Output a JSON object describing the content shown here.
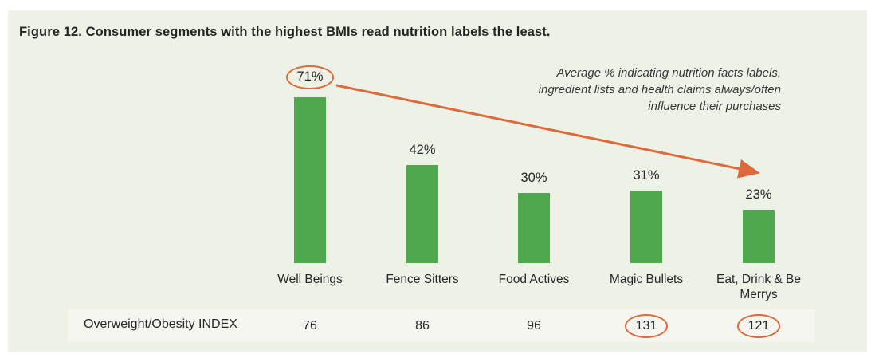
{
  "title": "Figure 12. Consumer segments with the highest BMIs read nutrition labels the least.",
  "annotation": {
    "lines": [
      "Average % indicating nutrition facts labels,",
      "ingredient lists and health claims always/often",
      "influence their purchases"
    ]
  },
  "index_row": {
    "label": "Overweight/Obesity INDEX"
  },
  "colors": {
    "bar": "#4fa84d",
    "accent_orange": "#dd6a3c",
    "panel_bg": "#edf1e6",
    "strip_bg": "#f4f6ef",
    "text": "#242628"
  },
  "chart_data": {
    "type": "bar",
    "title": "Figure 12. Consumer segments with the highest BMIs read nutrition labels the least.",
    "categories": [
      "Well Beings",
      "Fence Sitters",
      "Food Actives",
      "Magic Bullets",
      "Eat, Drink & Be Merrys"
    ],
    "values": [
      71,
      42,
      30,
      31,
      23
    ],
    "value_labels": [
      "71%",
      "42%",
      "30%",
      "31%",
      "23%"
    ],
    "unit": "%",
    "ylim": [
      0,
      80
    ],
    "grid": false,
    "legend": false,
    "circled_value_index": 0,
    "index_row_label": "Overweight/Obesity INDEX",
    "index_values": [
      76,
      86,
      96,
      131,
      121
    ],
    "circled_index_values": [
      131,
      121
    ],
    "annotation": "Average % indicating nutrition facts labels, ingredient lists and health claims always/often influence their purchases",
    "arrow": "from circled 71% value down-right to above last bar"
  }
}
